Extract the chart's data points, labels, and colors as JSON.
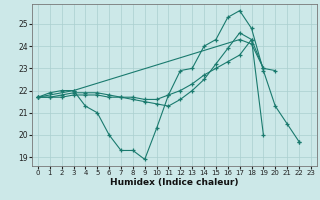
{
  "xlabel": "Humidex (Indice chaleur)",
  "background_color": "#cce8e8",
  "grid_color": "#aacfcf",
  "line_color": "#1a7a6e",
  "xlim": [
    -0.5,
    23.5
  ],
  "ylim": [
    18.6,
    25.9
  ],
  "yticks": [
    19,
    20,
    21,
    22,
    23,
    24,
    25
  ],
  "xticks": [
    0,
    1,
    2,
    3,
    4,
    5,
    6,
    7,
    8,
    9,
    10,
    11,
    12,
    13,
    14,
    15,
    16,
    17,
    18,
    19,
    20,
    21,
    22,
    23
  ],
  "lines": [
    {
      "x": [
        0,
        1,
        2,
        3,
        4,
        5,
        6,
        7,
        8,
        9,
        10,
        11,
        12,
        13,
        14,
        15,
        16,
        17,
        18,
        19,
        20,
        21,
        22
      ],
      "y": [
        21.7,
        21.9,
        22.0,
        22.0,
        21.3,
        21.0,
        20.0,
        19.3,
        19.3,
        18.9,
        20.3,
        21.8,
        22.9,
        23.0,
        24.0,
        24.3,
        25.3,
        25.6,
        24.8,
        22.9,
        21.3,
        20.5,
        19.7
      ]
    },
    {
      "x": [
        0,
        1,
        2,
        3,
        4,
        5,
        6,
        7,
        8,
        9,
        10,
        11,
        12,
        13,
        14,
        15,
        16,
        17,
        18,
        19,
        20
      ],
      "y": [
        21.7,
        21.7,
        21.7,
        21.8,
        21.8,
        21.8,
        21.7,
        21.7,
        21.7,
        21.6,
        21.6,
        21.8,
        22.0,
        22.3,
        22.7,
        23.0,
        23.3,
        23.6,
        24.3,
        23.0,
        22.9
      ]
    },
    {
      "x": [
        0,
        1,
        2,
        3,
        4,
        5,
        6,
        7,
        8,
        9,
        10,
        11,
        12,
        13,
        14,
        15,
        16,
        17,
        18,
        19,
        20,
        21,
        22,
        23
      ],
      "y": [
        21.7,
        21.7,
        21.8,
        21.9,
        21.9,
        21.9,
        21.8,
        21.7,
        21.6,
        21.5,
        21.4,
        21.3,
        21.6,
        22.0,
        22.5,
        23.2,
        23.9,
        24.6,
        24.3,
        20.0,
        null,
        null,
        null,
        null
      ]
    },
    {
      "x": [
        0,
        3,
        17,
        18,
        19,
        20,
        21,
        22,
        23
      ],
      "y": [
        21.7,
        22.0,
        24.3,
        24.1,
        23.0,
        null,
        null,
        19.7,
        null
      ]
    }
  ]
}
